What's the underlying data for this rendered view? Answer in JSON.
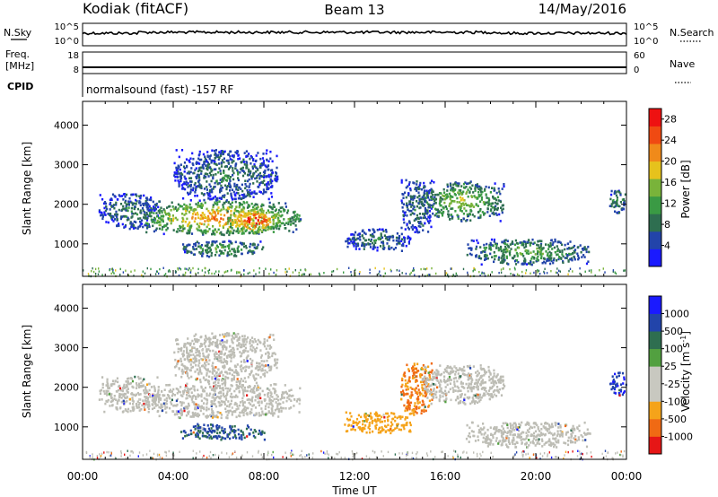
{
  "header": {
    "station": "Kodiak (fitACF)",
    "beam": "Beam 13",
    "date": "14/May/2016"
  },
  "top_panel": {
    "left_label_1": "N.Sky",
    "left_label_2": "Freq.",
    "left_label_3": "[MHz]",
    "left_label_4": "CPID",
    "right_label_1": "N.Search",
    "right_label_2": "Nave",
    "left_ticks_1": [
      "10^5",
      "10^0"
    ],
    "right_ticks_1": [
      "10^5",
      "10^0"
    ],
    "left_ticks_2": [
      "18",
      "8"
    ],
    "right_ticks_2": [
      "60",
      "0"
    ],
    "cpid_text": "normalsound (fast) -157 RF"
  },
  "colors": {
    "power": [
      "#1a1aff",
      "#2244aa",
      "#2e6e50",
      "#3a9a44",
      "#79b33a",
      "#e6c21c",
      "#f08a1a",
      "#f04a12",
      "#ee1111"
    ],
    "velocity": [
      "#e61616",
      "#f06a14",
      "#f5a31a",
      "#c8c8c0",
      "#c8c8c0",
      "#52a040",
      "#2e6e50",
      "#2244aa",
      "#1a1aff"
    ],
    "ground": "#bdbdb5"
  },
  "chart_data": [
    {
      "type": "heatmap",
      "name": "power",
      "title": "",
      "xlabel": "Time UT",
      "ylabel": "Slant Range [km]",
      "xlim": [
        0,
        24
      ],
      "ylim": [
        180,
        4600
      ],
      "x_ticks": [
        "00:00",
        "04:00",
        "08:00",
        "12:00",
        "16:00",
        "20:00",
        "00:00"
      ],
      "y_ticks": [
        1000,
        2000,
        3000,
        4000
      ],
      "colorbar_label": "Power [dB]",
      "colorbar_ticks": [
        4,
        8,
        12,
        16,
        20,
        24,
        28
      ],
      "colorbar_range": [
        0,
        30
      ],
      "echo_regions": [
        {
          "t0": 0.7,
          "t1": 3.4,
          "r0": 1400,
          "r1": 2300,
          "level": 8
        },
        {
          "t0": 2.6,
          "t1": 9.6,
          "r0": 1250,
          "r1": 2100,
          "level": 20
        },
        {
          "t0": 6.3,
          "t1": 8.7,
          "r0": 1300,
          "r1": 1950,
          "level": 26
        },
        {
          "t0": 4.0,
          "t1": 8.6,
          "r0": 2100,
          "r1": 3400,
          "level": 8
        },
        {
          "t0": 4.3,
          "t1": 8.0,
          "r0": 700,
          "r1": 1100,
          "level": 12
        },
        {
          "t0": 11.5,
          "t1": 14.5,
          "r0": 850,
          "r1": 1400,
          "level": 8
        },
        {
          "t0": 14.0,
          "t1": 15.4,
          "r0": 1300,
          "r1": 2650,
          "level": 8
        },
        {
          "t0": 14.9,
          "t1": 18.6,
          "r0": 1600,
          "r1": 2600,
          "level": 14
        },
        {
          "t0": 16.9,
          "t1": 22.4,
          "r0": 500,
          "r1": 1150,
          "level": 12
        },
        {
          "t0": 23.2,
          "t1": 24.0,
          "r0": 1800,
          "r1": 2400,
          "level": 10
        }
      ]
    },
    {
      "type": "heatmap",
      "name": "velocity",
      "title": "",
      "xlabel": "Time UT",
      "ylabel": "Slant Range [km]",
      "xlim": [
        0,
        24
      ],
      "ylim": [
        180,
        4600
      ],
      "x_ticks": [
        "00:00",
        "04:00",
        "08:00",
        "12:00",
        "16:00",
        "20:00",
        "00:00"
      ],
      "y_ticks": [
        1000,
        2000,
        3000,
        4000
      ],
      "colorbar_label": "Velocity [m s^-1]",
      "colorbar_ticks": [
        "1000",
        "500",
        "100",
        "25",
        "-25",
        "-100",
        "-500",
        "-1000"
      ],
      "echo_regions": [
        {
          "t0": 0.7,
          "t1": 3.4,
          "r0": 1400,
          "r1": 2300,
          "level": "ground"
        },
        {
          "t0": 2.6,
          "t1": 9.6,
          "r0": 1250,
          "r1": 2100,
          "level": "ground"
        },
        {
          "t0": 4.0,
          "t1": 8.6,
          "r0": 2100,
          "r1": 3400,
          "level": "ground"
        },
        {
          "t0": 4.3,
          "t1": 8.0,
          "r0": 700,
          "r1": 1100,
          "level": 100
        },
        {
          "t0": 11.5,
          "t1": 14.5,
          "r0": 850,
          "r1": 1400,
          "level": -300
        },
        {
          "t0": 14.0,
          "t1": 15.4,
          "r0": 1300,
          "r1": 2650,
          "level": -500
        },
        {
          "t0": 14.9,
          "t1": 18.6,
          "r0": 1600,
          "r1": 2600,
          "level": "ground"
        },
        {
          "t0": 16.9,
          "t1": 22.4,
          "r0": 500,
          "r1": 1150,
          "level": "ground"
        },
        {
          "t0": 23.2,
          "t1": 24.0,
          "r0": 1800,
          "r1": 2400,
          "level": 500
        }
      ]
    }
  ]
}
